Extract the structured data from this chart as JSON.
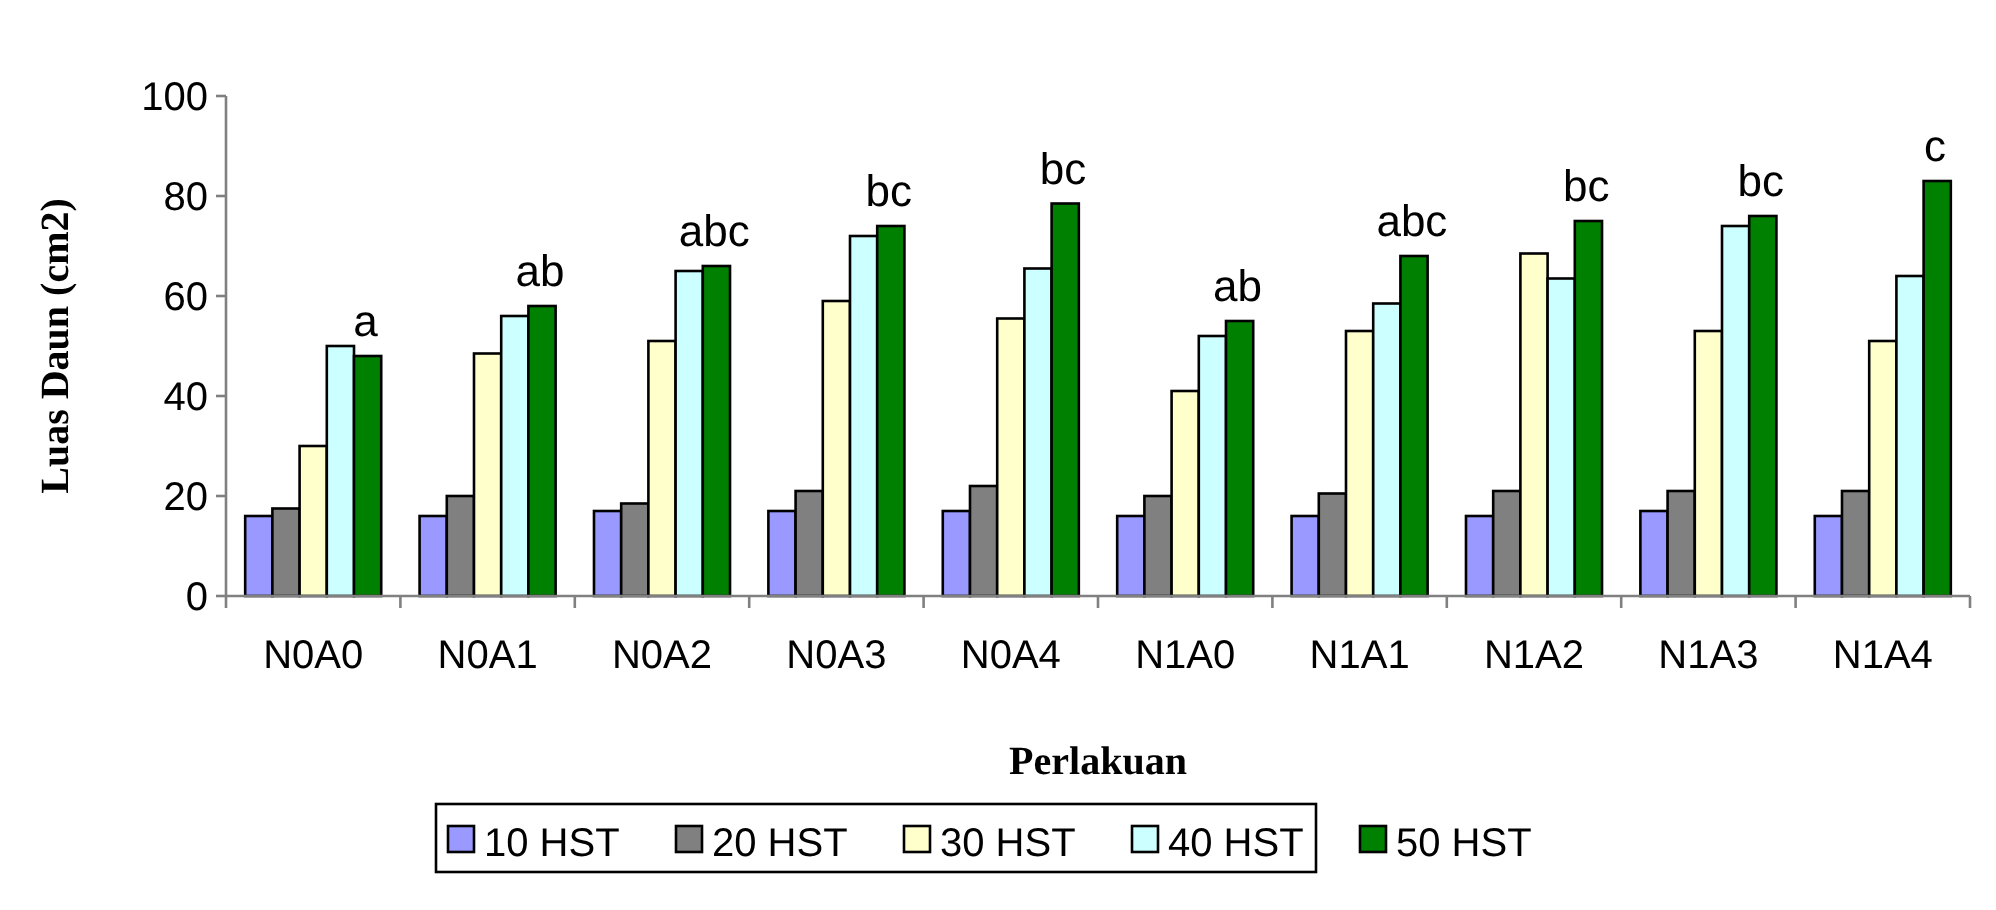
{
  "chart_data": {
    "type": "bar",
    "xlabel": "Perlakuan",
    "ylabel": "Luas Daun (cm2)",
    "categories": [
      "N0A0",
      "N0A1",
      "N0A2",
      "N0A3",
      "N0A4",
      "N1A0",
      "N1A1",
      "N1A2",
      "N1A3",
      "N1A4"
    ],
    "series": [
      {
        "name": "10 HST",
        "color": "#9999ff",
        "values": [
          16,
          16,
          17,
          17,
          17,
          16,
          16,
          16,
          17,
          16
        ]
      },
      {
        "name": "20 HST",
        "color": "#808080",
        "values": [
          17.5,
          20,
          18.5,
          21,
          22,
          20,
          20.5,
          21,
          21,
          21
        ]
      },
      {
        "name": "30 HST",
        "color": "#ffffcc",
        "values": [
          30,
          48.5,
          51,
          59,
          55.5,
          41,
          53,
          68.5,
          53,
          51
        ]
      },
      {
        "name": "40 HST",
        "color": "#ccffff",
        "values": [
          50,
          56,
          65,
          72,
          65.5,
          52,
          58.5,
          63.5,
          74,
          64
        ]
      },
      {
        "name": "50 HST",
        "color": "#008000",
        "values": [
          48,
          58,
          66,
          74,
          78.5,
          55,
          68,
          75,
          76,
          83
        ]
      }
    ],
    "ylim": [
      0,
      100
    ],
    "yticks": [
      0,
      20,
      40,
      60,
      80,
      100
    ],
    "grid": false,
    "legend": "bottom",
    "annotations": [
      "a",
      "ab",
      "abc",
      "bc",
      "bc",
      "ab",
      "abc",
      "bc",
      "bc",
      "c"
    ]
  }
}
